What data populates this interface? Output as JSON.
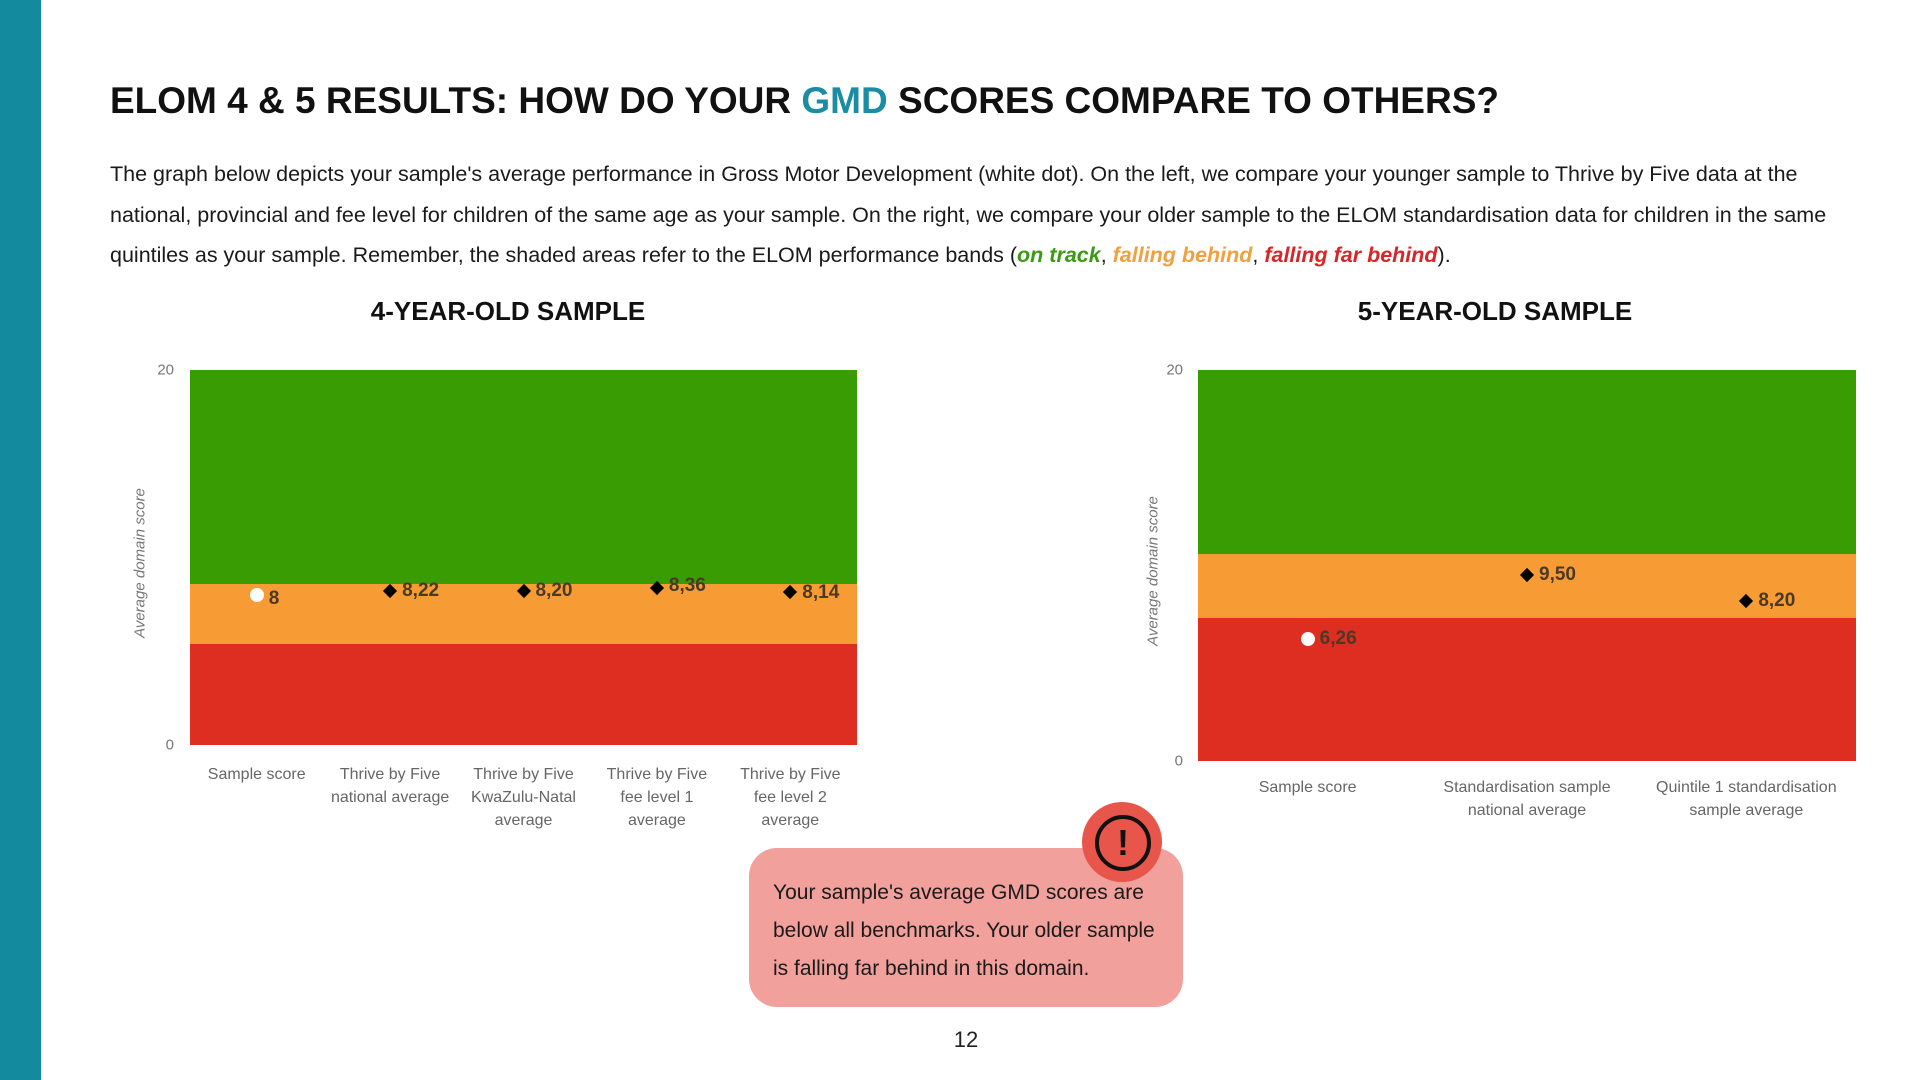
{
  "page": {
    "title_pre": "ELOM 4 & 5 RESULTS: HOW DO YOUR ",
    "title_accent": "GMD",
    "title_post": " SCORES COMPARE TO OTHERS?",
    "intro": "The graph below depicts your sample's average performance in Gross Motor Development (white dot). On the left, we compare your younger sample to Thrive by Five data at the national, provincial and fee level for children of the same age as your sample. On the right, we compare your older sample to the ELOM standardisation data for children in the same quintiles as your sample. Remember, the shaded areas refer to the ELOM performance bands (",
    "legend_on_track": "on track",
    "legend_sep": ", ",
    "legend_falling_behind": "falling behind",
    "legend_falling_far_behind": "falling far behind",
    "intro_end": ").",
    "page_number": "12"
  },
  "colors": {
    "sidebar": "#148A9F",
    "accent": "#1A8CA3",
    "on_track": "#399C02",
    "falling_behind": "#F79B35",
    "falling_far_behind": "#DE2D21",
    "callout_bg": "#F1A09C",
    "alert_icon": "#E8554A"
  },
  "callout": {
    "icon": "exclamation-circle-icon",
    "text": "Your sample's average GMD scores are below all benchmarks. Your older sample is falling far behind in this domain."
  },
  "chart_data": [
    {
      "type": "scatter",
      "title": "4-YEAR-OLD SAMPLE",
      "xlabel": "",
      "ylabel": "Average domain score",
      "ylim": [
        0,
        20
      ],
      "yticks": [
        "0",
        "20"
      ],
      "grid": false,
      "bands": [
        {
          "name": "falling far behind",
          "from": 0,
          "to": 5.4,
          "color": "#DE2D21"
        },
        {
          "name": "falling behind",
          "from": 5.4,
          "to": 8.6,
          "color": "#F79B35"
        },
        {
          "name": "on track",
          "from": 8.6,
          "to": 20,
          "color": "#399C02"
        }
      ],
      "categories": [
        "Sample score",
        "Thrive by Five national average",
        "Thrive by Five KwaZulu-Natal average",
        "Thrive by Five fee level 1 average",
        "Thrive by Five fee level 2 average"
      ],
      "category_lines": [
        [
          "Sample score"
        ],
        [
          "Thrive by Five",
          "national average"
        ],
        [
          "Thrive by Five",
          "KwaZulu-Natal",
          "average"
        ],
        [
          "Thrive by Five",
          "fee level 1",
          "average"
        ],
        [
          "Thrive by Five",
          "fee level 2",
          "average"
        ]
      ],
      "values": [
        8,
        8.22,
        8.2,
        8.36,
        8.14
      ],
      "labels": [
        "8",
        "8,22",
        "8,20",
        "8,36",
        "8,14"
      ],
      "markers": [
        "white-dot",
        "diamond",
        "diamond",
        "diamond",
        "diamond"
      ]
    },
    {
      "type": "scatter",
      "title": "5-YEAR-OLD SAMPLE",
      "xlabel": "",
      "ylabel": "Average domain score",
      "ylim": [
        0,
        20
      ],
      "yticks": [
        "0",
        "20"
      ],
      "grid": false,
      "bands": [
        {
          "name": "falling far behind",
          "from": 0,
          "to": 7.3,
          "color": "#DE2D21"
        },
        {
          "name": "falling behind",
          "from": 7.3,
          "to": 10.6,
          "color": "#F79B35"
        },
        {
          "name": "on track",
          "from": 10.6,
          "to": 20,
          "color": "#399C02"
        }
      ],
      "categories": [
        "Sample score",
        "Standardisation sample national average",
        "Quintile 1 standardisation sample average"
      ],
      "category_lines": [
        [
          "Sample score"
        ],
        [
          "Standardisation sample",
          "national average"
        ],
        [
          "Quintile 1 standardisation",
          "sample average"
        ]
      ],
      "values": [
        6.26,
        9.5,
        8.2
      ],
      "labels": [
        "6,26",
        "9,50",
        "8,20"
      ],
      "markers": [
        "white-dot",
        "diamond",
        "diamond"
      ]
    }
  ]
}
